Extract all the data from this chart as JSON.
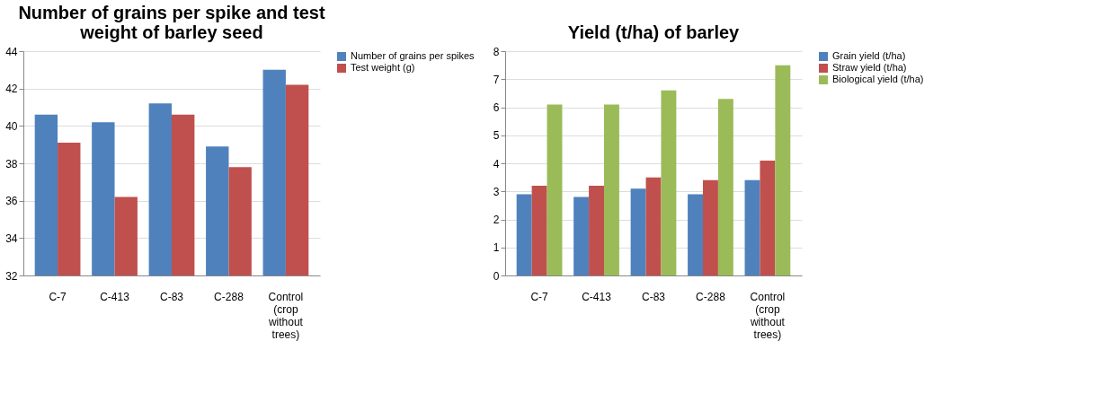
{
  "chart_data": [
    {
      "type": "bar",
      "title": "Number of grains per spike and test weight of barley seed",
      "categories": [
        "C-7",
        "C-413",
        "C-83",
        "C-288",
        "Control (crop without trees)"
      ],
      "series": [
        {
          "name": "Number of grains per spikes",
          "color": "#4f81bd",
          "values": [
            40.6,
            40.2,
            41.2,
            38.9,
            43.0
          ]
        },
        {
          "name": "Test weight (g)",
          "color": "#c0504d",
          "values": [
            39.1,
            36.2,
            40.6,
            37.8,
            42.2
          ]
        }
      ],
      "ylim": [
        32,
        44
      ],
      "yticks": [
        32,
        34,
        36,
        38,
        40,
        42,
        44
      ],
      "grid": "y",
      "legend": "right"
    },
    {
      "type": "bar",
      "title": "Yield (t/ha) of barley",
      "categories": [
        "C-7",
        "C-413",
        "C-83",
        "C-288",
        "Control (crop without trees)"
      ],
      "series": [
        {
          "name": "Grain yield (t/ha)",
          "color": "#4f81bd",
          "values": [
            2.9,
            2.8,
            3.1,
            2.9,
            3.4
          ]
        },
        {
          "name": "Straw yield (t/ha)",
          "color": "#c0504d",
          "values": [
            3.2,
            3.2,
            3.5,
            3.4,
            4.1
          ]
        },
        {
          "name": "Biological yield (t/ha)",
          "color": "#9bbb59",
          "values": [
            6.1,
            6.1,
            6.6,
            6.3,
            7.5
          ]
        }
      ],
      "ylim": [
        0,
        8
      ],
      "yticks": [
        0,
        1,
        2,
        3,
        4,
        5,
        6,
        7,
        8
      ],
      "grid": "y",
      "legend": "right"
    }
  ]
}
